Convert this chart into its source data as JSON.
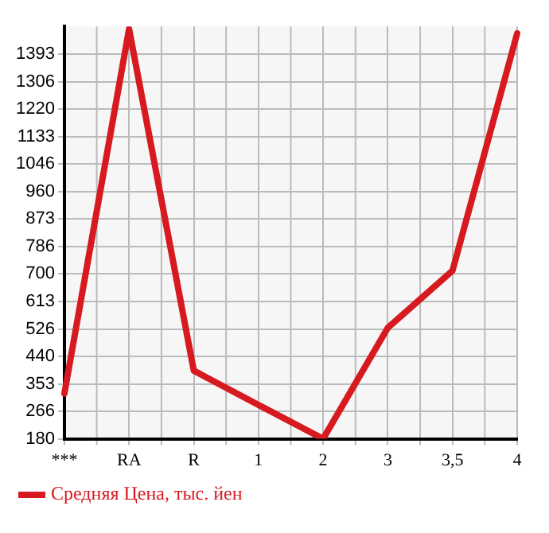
{
  "chart_data": {
    "type": "line",
    "categories": [
      "***",
      "RA",
      "R",
      "1",
      "2",
      "3",
      "3,5",
      "4"
    ],
    "series": [
      {
        "name": "Средняя Цена, тыс. йен",
        "color": "#d71920",
        "values": [
          323,
          1472,
          395,
          287,
          180,
          530,
          710,
          1458
        ]
      }
    ],
    "ylim": [
      180,
      1480
    ],
    "yticks": [
      180,
      266,
      353,
      440,
      526,
      613,
      700,
      786,
      873,
      960,
      1046,
      1133,
      1220,
      1306,
      1393
    ],
    "grid": true,
    "legend": "bottom left",
    "marker": "none",
    "line_style": "solid"
  }
}
